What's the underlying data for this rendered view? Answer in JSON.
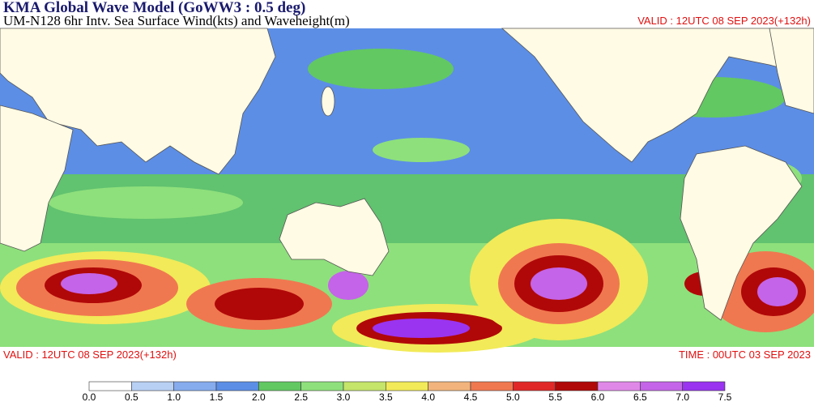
{
  "header": {
    "title": "KMA  Global Wave Model (GoWW3 : 0.5 deg)",
    "subtitle": "UM-N128  6hr Intv. Sea Surface Wind(kts) and Waveheight(m)",
    "valid": "VALID : 12UTC 08 SEP 2023(+132h)"
  },
  "footer": {
    "valid": "VALID : 12UTC 08 SEP 2023(+132h)",
    "time": "TIME : 00UTC 03 SEP 2023"
  },
  "colorbar": {
    "labels": [
      "0.0",
      "0.5",
      "1.0",
      "1.5",
      "2.0",
      "2.5",
      "3.0",
      "3.5",
      "4.0",
      "4.5",
      "5.0",
      "5.5",
      "6.0",
      "6.5",
      "7.0",
      "7.5"
    ],
    "colors": [
      "#ffffff",
      "#b8d0f4",
      "#86acee",
      "#5c8ee6",
      "#62c862",
      "#8ee07c",
      "#c4e46a",
      "#f2ea58",
      "#f2b47c",
      "#f07850",
      "#e02828",
      "#b00808",
      "#e088e8",
      "#c464e8",
      "#9a34f0"
    ]
  }
}
